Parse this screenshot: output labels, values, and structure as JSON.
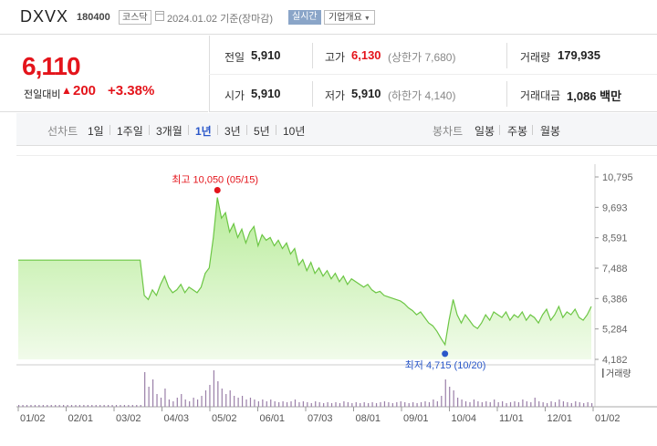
{
  "header": {
    "name": "DXVX",
    "code": "180400",
    "market": "코스닥",
    "date": "2024.01.02  기준(장마감)",
    "realtime": "실시간",
    "company_info": "기업개요"
  },
  "price": {
    "current": "6,110",
    "change_label": "전일대비",
    "change_arrow": "▲",
    "change_value": "200",
    "change_pct": "+3.38%"
  },
  "info": {
    "prev_label": "전일",
    "prev_value": "5,910",
    "high_label": "고가",
    "high_value": "6,130",
    "high_sub": "(상한가 7,680)",
    "volume_label": "거래량",
    "volume_value": "179,935",
    "open_label": "시가",
    "open_value": "5,910",
    "low_label": "저가",
    "low_value": "5,910",
    "low_sub": "(하한가 4,140)",
    "amount_label": "거래대금",
    "amount_value": "1,086 백만"
  },
  "tabs": {
    "line_label": "선차트",
    "periods": [
      "1일",
      "1주일",
      "3개월",
      "1년",
      "3년",
      "5년",
      "10년"
    ],
    "active_period": "1년",
    "candle_label": "봉차트",
    "candles": [
      "일봉",
      "주봉",
      "월봉"
    ]
  },
  "chart_data": {
    "type": "area",
    "y_ticks": [
      "10,795",
      "9,693",
      "8,591",
      "7,488",
      "6,386",
      "5,284",
      "4,182"
    ],
    "ylim": [
      4182,
      10795
    ],
    "x_ticks": [
      "01/02",
      "02/01",
      "03/02",
      "04/03",
      "05/02",
      "06/01",
      "07/03",
      "08/01",
      "09/01",
      "10/04",
      "11/01",
      "12/01",
      "01/02"
    ],
    "max_label": "최고 10,050 (05/15)",
    "min_label": "최저 4,715 (10/20)",
    "volume_label": "거래량",
    "series": [
      {
        "values": [
          7780,
          7780,
          7780,
          7780,
          7780,
          7780,
          7780,
          7780,
          7780,
          7780,
          7780,
          7780,
          7780,
          7780,
          7780,
          7780,
          7780,
          7780,
          7780,
          7780,
          7780,
          7780,
          7780,
          7780,
          7780,
          7780,
          7780,
          7780,
          7780,
          7780,
          7780,
          6500,
          6350,
          6700,
          6500,
          6900,
          7200,
          6800,
          6600,
          6700,
          6900,
          6600,
          6800,
          6700,
          6600,
          6800,
          7300,
          7500,
          8600,
          10050,
          9300,
          9500,
          8800,
          9100,
          8600,
          8900,
          8400,
          8800,
          9000,
          8300,
          8700,
          8500,
          8600,
          8300,
          8500,
          8200,
          8400,
          8000,
          8200,
          7600,
          7800,
          7400,
          7700,
          7300,
          7500,
          7200,
          7400,
          7100,
          7300,
          7000,
          7200,
          6900,
          7100,
          7000,
          6900,
          6800,
          6900,
          6700,
          6600,
          6650,
          6500,
          6450,
          6400,
          6350,
          6300,
          6200,
          6050,
          5950,
          5800,
          5900,
          5700,
          5500,
          5400,
          5200,
          4950,
          4715,
          5600,
          6350,
          5800,
          5500,
          5800,
          5600,
          5400,
          5300,
          5500,
          5800,
          5600,
          5900,
          5800,
          5700,
          5900,
          5600,
          5800,
          5700,
          5900,
          5600,
          5800,
          5700,
          5500,
          5800,
          6000,
          5600,
          5800,
          6100,
          5700,
          5900,
          5800,
          6000,
          5700,
          5600,
          5800,
          6100
        ]
      }
    ],
    "volume": [
      2,
      2,
      2,
      2,
      2,
      2,
      2,
      2,
      2,
      2,
      2,
      2,
      2,
      2,
      2,
      2,
      2,
      2,
      2,
      2,
      2,
      2,
      2,
      2,
      2,
      2,
      2,
      2,
      2,
      2,
      2,
      38,
      22,
      30,
      14,
      10,
      20,
      8,
      6,
      10,
      14,
      8,
      6,
      10,
      8,
      12,
      18,
      24,
      40,
      28,
      20,
      14,
      18,
      12,
      10,
      12,
      8,
      10,
      8,
      6,
      8,
      6,
      8,
      6,
      5,
      6,
      5,
      6,
      8,
      5,
      6,
      5,
      4,
      6,
      5,
      4,
      5,
      4,
      5,
      4,
      6,
      5,
      4,
      5,
      4,
      5,
      4,
      5,
      4,
      5,
      6,
      5,
      4,
      5,
      6,
      5,
      4,
      5,
      4,
      5,
      6,
      5,
      8,
      6,
      12,
      30,
      22,
      18,
      10,
      8,
      6,
      5,
      8,
      6,
      5,
      6,
      5,
      8,
      5,
      6,
      4,
      5,
      6,
      5,
      8,
      6,
      5,
      10,
      6,
      5,
      4,
      6,
      5,
      8,
      6,
      5,
      4,
      6,
      5,
      4,
      5,
      4
    ]
  }
}
